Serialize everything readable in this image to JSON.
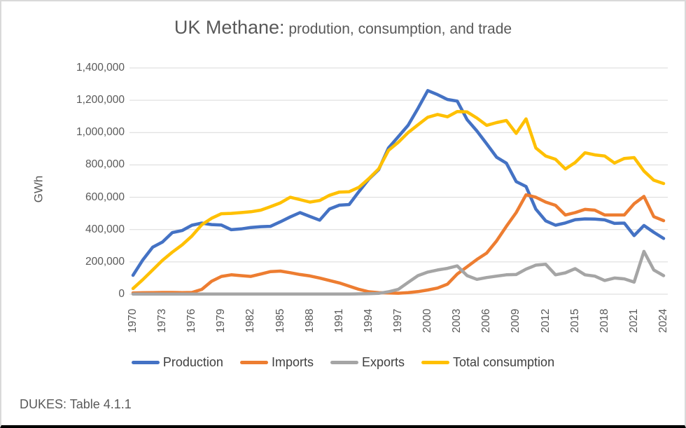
{
  "source": "DUKES: Table 4.1.1",
  "chart_data": {
    "type": "line",
    "title_main": "UK Methane:",
    "title_sub": " prodution, consumption, and trade",
    "ylabel": "GWh",
    "ylim": [
      0,
      1400000
    ],
    "ytick_step": 200000,
    "ytick_labels": [
      "0",
      "200,000",
      "400,000",
      "600,000",
      "800,000",
      "1,000,000",
      "1,200,000",
      "1,400,000"
    ],
    "x_start": 1970,
    "x_end": 2024,
    "xtick_labels": [
      "1970",
      "1973",
      "1976",
      "1979",
      "1982",
      "1985",
      "1988",
      "1991",
      "1994",
      "1997",
      "2000",
      "2003",
      "2006",
      "2009",
      "2012",
      "2015",
      "2018",
      "2021",
      "2024"
    ],
    "grid": true,
    "legend_position": "bottom",
    "series": [
      {
        "name": "Production",
        "color": "#4472C4",
        "values": [
          117000,
          212000,
          291000,
          323000,
          381000,
          394000,
          427000,
          440000,
          431000,
          428000,
          399000,
          404000,
          413000,
          418000,
          420000,
          448000,
          478000,
          505000,
          481000,
          458000,
          527000,
          551000,
          555000,
          636000,
          712000,
          770000,
          905000,
          975000,
          1045000,
          1150000,
          1260000,
          1235000,
          1205000,
          1195000,
          1080000,
          1010000,
          930000,
          848000,
          811000,
          697000,
          666000,
          526000,
          454000,
          427000,
          441000,
          461000,
          466000,
          465000,
          460000,
          438000,
          440000,
          363000,
          425000,
          383000,
          345000
        ]
      },
      {
        "name": "Imports",
        "color": "#ED7D31",
        "values": [
          8000,
          9000,
          10000,
          11000,
          11000,
          10000,
          11000,
          30000,
          80000,
          110000,
          120000,
          115000,
          110000,
          125000,
          140000,
          143000,
          133000,
          122000,
          113000,
          100000,
          85000,
          70000,
          50000,
          30000,
          15000,
          10000,
          8000,
          6000,
          10000,
          16000,
          26000,
          38000,
          62000,
          125000,
          170000,
          215000,
          255000,
          330000,
          420000,
          505000,
          615000,
          600000,
          570000,
          550000,
          490000,
          505000,
          525000,
          520000,
          490000,
          490000,
          490000,
          560000,
          605000,
          480000,
          455000
        ]
      },
      {
        "name": "Exports",
        "color": "#A5A5A5",
        "values": [
          1000,
          1000,
          1000,
          1000,
          1000,
          1000,
          1000,
          1000,
          1000,
          1000,
          1000,
          1000,
          1000,
          1000,
          1000,
          1000,
          1000,
          1000,
          1000,
          1000,
          1000,
          1000,
          1000,
          2000,
          3000,
          5000,
          15000,
          30000,
          73000,
          115000,
          137000,
          150000,
          160000,
          175000,
          115000,
          92000,
          103000,
          112000,
          120000,
          122000,
          155000,
          180000,
          185000,
          120000,
          132000,
          158000,
          120000,
          112000,
          85000,
          100000,
          95000,
          75000,
          265000,
          150000,
          115000
        ]
      },
      {
        "name": "Total consumption",
        "color": "#FFC000",
        "values": [
          35000,
          90000,
          150000,
          210000,
          260000,
          305000,
          360000,
          430000,
          470000,
          498000,
          500000,
          505000,
          510000,
          520000,
          542000,
          565000,
          600000,
          585000,
          570000,
          580000,
          612000,
          632000,
          634000,
          662000,
          715000,
          775000,
          890000,
          940000,
          1000000,
          1048000,
          1095000,
          1112000,
          1098000,
          1130000,
          1128000,
          1090000,
          1045000,
          1062000,
          1075000,
          995000,
          1085000,
          905000,
          855000,
          835000,
          775000,
          815000,
          875000,
          862000,
          855000,
          812000,
          840000,
          845000,
          762000,
          705000,
          685000
        ]
      }
    ]
  }
}
